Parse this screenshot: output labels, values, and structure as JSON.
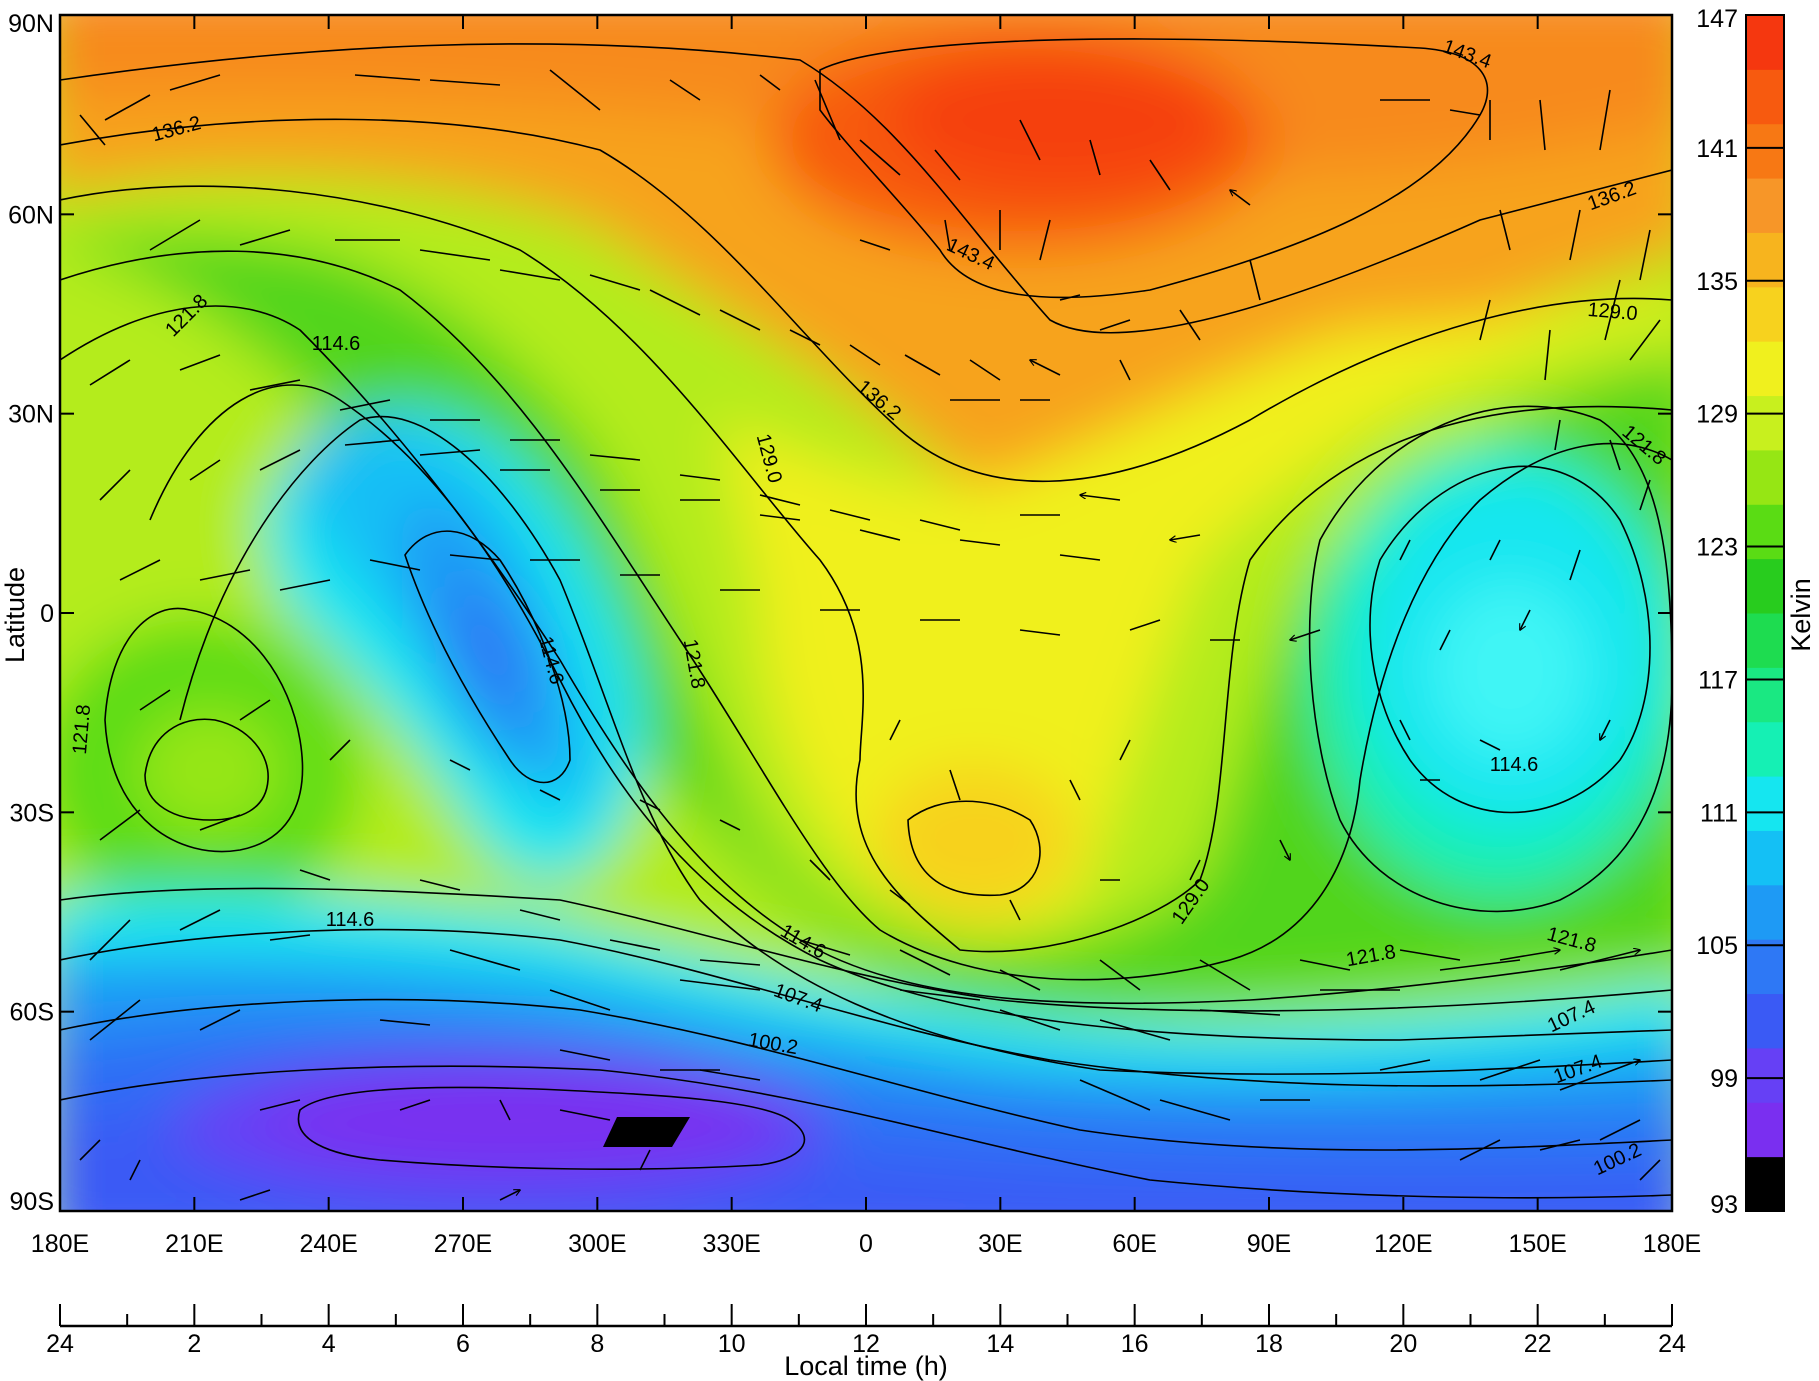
{
  "chart_data": {
    "type": "heatmap",
    "subtype": "filled contour map with wind vectors",
    "xlabel": "",
    "ylabel": "Latitude",
    "secondary_xlabel": "Local time (h)",
    "colorbar_label": "Kelvin",
    "x_ticks": [
      "180E",
      "210E",
      "240E",
      "270E",
      "300E",
      "330E",
      "0",
      "30E",
      "60E",
      "90E",
      "120E",
      "150E",
      "180E"
    ],
    "x_tick_values": [
      -180,
      -150,
      -120,
      -90,
      -60,
      -30,
      0,
      30,
      60,
      90,
      120,
      150,
      180
    ],
    "y_ticks": [
      "90N",
      "60N",
      "30N",
      "0",
      "30S",
      "60S",
      "90S"
    ],
    "y_tick_values": [
      90,
      60,
      30,
      0,
      -30,
      -60,
      -90
    ],
    "local_time_ticks": [
      "24",
      "2",
      "4",
      "6",
      "8",
      "10",
      "12",
      "14",
      "16",
      "18",
      "20",
      "22",
      "24"
    ],
    "local_time_values": [
      0,
      2,
      4,
      6,
      8,
      10,
      12,
      14,
      16,
      18,
      20,
      22,
      24
    ],
    "colorbar_ticks": [
      "147",
      "141",
      "135",
      "129",
      "123",
      "117",
      "111",
      "105",
      "99",
      "93"
    ],
    "colorbar_range": [
      93,
      147
    ],
    "colorbar_colors": [
      "#000000",
      "#7a2ff0",
      "#6640f5",
      "#3a5af5",
      "#2e78f5",
      "#1e9af5",
      "#14c0f5",
      "#15e6f0",
      "#15f0b4",
      "#1ae882",
      "#1edc50",
      "#28cc1e",
      "#5adc14",
      "#96e614",
      "#c8f01e",
      "#f0f01e",
      "#f7d21e",
      "#f7b41e",
      "#f79628",
      "#f77814",
      "#f75a0f",
      "#f5370f"
    ],
    "ylim": [
      -90,
      90
    ],
    "xlim": [
      -180,
      180
    ],
    "contour_levels": [
      100.2,
      107.4,
      114.6,
      121.8,
      129.0,
      136.2,
      143.4
    ],
    "contour_labels": [
      "143.4",
      "143.4",
      "136.2",
      "136.2",
      "136.2",
      "129.0",
      "129.0",
      "129.0",
      "121.8",
      "121.8",
      "121.8",
      "121.8",
      "121.8",
      "121.8",
      "114.6",
      "114.6",
      "114.6",
      "114.6",
      "114.6",
      "107.4",
      "107.4",
      "107.4",
      "100.2",
      "100.2"
    ],
    "temperature_features": [
      {
        "kind": "max",
        "lon": 55,
        "lat": 68,
        "value": 146
      },
      {
        "kind": "min",
        "lon": -80,
        "lat": -2,
        "value": 104
      },
      {
        "kind": "max",
        "lon": 25,
        "lat": -35,
        "value": 133
      },
      {
        "kind": "max",
        "lon": -157,
        "lat": -22,
        "value": 127
      },
      {
        "kind": "min",
        "lon": 150,
        "lat": -5,
        "value": 113
      },
      {
        "kind": "min",
        "lon": -50,
        "lat": -78,
        "value": 93
      }
    ]
  }
}
